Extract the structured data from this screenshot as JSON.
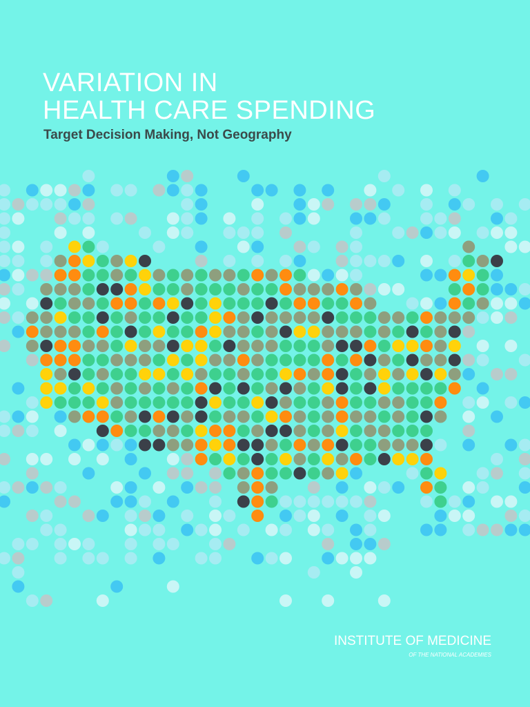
{
  "title_lines": [
    "VARIATION IN",
    "HEALTH CARE SPENDING"
  ],
  "subtitle": "Target Decision Making, Not Geography",
  "publisher": {
    "name": "INSTITUTE OF MEDICINE",
    "affiliation": "OF THE NATIONAL ACADEMIES"
  }
}
